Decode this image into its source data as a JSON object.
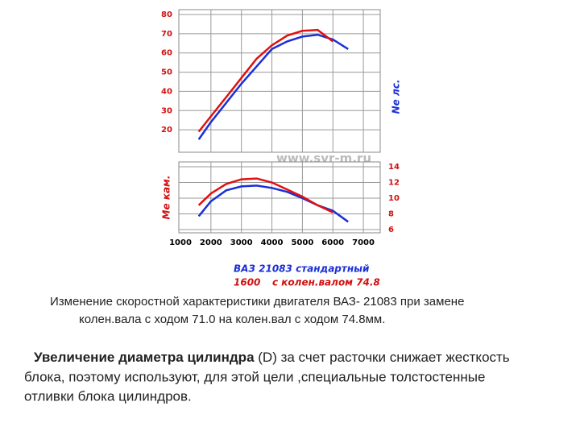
{
  "chart_data": [
    {
      "type": "line",
      "ylabel": "Ne лс.",
      "watermark": "www.svr-m.ru",
      "x": [
        1600,
        2000,
        2500,
        3000,
        3500,
        4000,
        4500,
        5000,
        5500,
        6000,
        6500
      ],
      "xlim": [
        1000,
        7500
      ],
      "ylim": [
        10,
        80
      ],
      "yticks": [
        20,
        30,
        40,
        50,
        60,
        70,
        80
      ],
      "grid": true,
      "legend_note": "1600",
      "series": [
        {
          "name": "ВАЗ 21083 стандартный",
          "color": "#1a2fd6",
          "values": [
            15,
            24,
            34,
            44,
            53,
            62,
            66,
            68.5,
            69.5,
            67,
            62
          ]
        },
        {
          "name": "с колен.валом 74.8",
          "color": "#e01010",
          "values": [
            19,
            27,
            37,
            47,
            57,
            64,
            69,
            71.5,
            72,
            66,
            null
          ]
        }
      ]
    },
    {
      "type": "line",
      "ylabel": "Me кам.",
      "x": [
        1600,
        2000,
        2500,
        3000,
        3500,
        4000,
        4500,
        5000,
        5500,
        6000,
        6500
      ],
      "xlim": [
        1000,
        7500
      ],
      "xticks": [
        1000,
        2000,
        3000,
        4000,
        5000,
        6000,
        7000
      ],
      "ylim": [
        6,
        14
      ],
      "yticks": [
        6,
        8,
        10,
        12,
        14
      ],
      "grid": true,
      "series": [
        {
          "color": "#1a2fd6",
          "values": [
            7.7,
            9.6,
            11,
            11.5,
            11.6,
            11.3,
            10.8,
            10,
            9.1,
            8.4,
            7
          ]
        },
        {
          "color": "#e01010",
          "values": [
            9.1,
            10.6,
            11.8,
            12.4,
            12.5,
            12,
            11.1,
            10.2,
            9.1,
            8.2,
            null
          ]
        }
      ]
    }
  ],
  "caption": [
    "Изменение скоростной характеристики двигателя ВАЗ- 21083 при замене",
    "колен.вала с ходом 71.0 на колен.вал с ходом 74.8мм."
  ],
  "paragraph": {
    "bold": "Увеличение диаметра цилиндра",
    "rest": " (D) за счет расточки снижает жесткость",
    "lines": [
      "блока, поэтому используют, для этой цели ,специальные толстостенные",
      "отливки блока цилиндров."
    ]
  }
}
